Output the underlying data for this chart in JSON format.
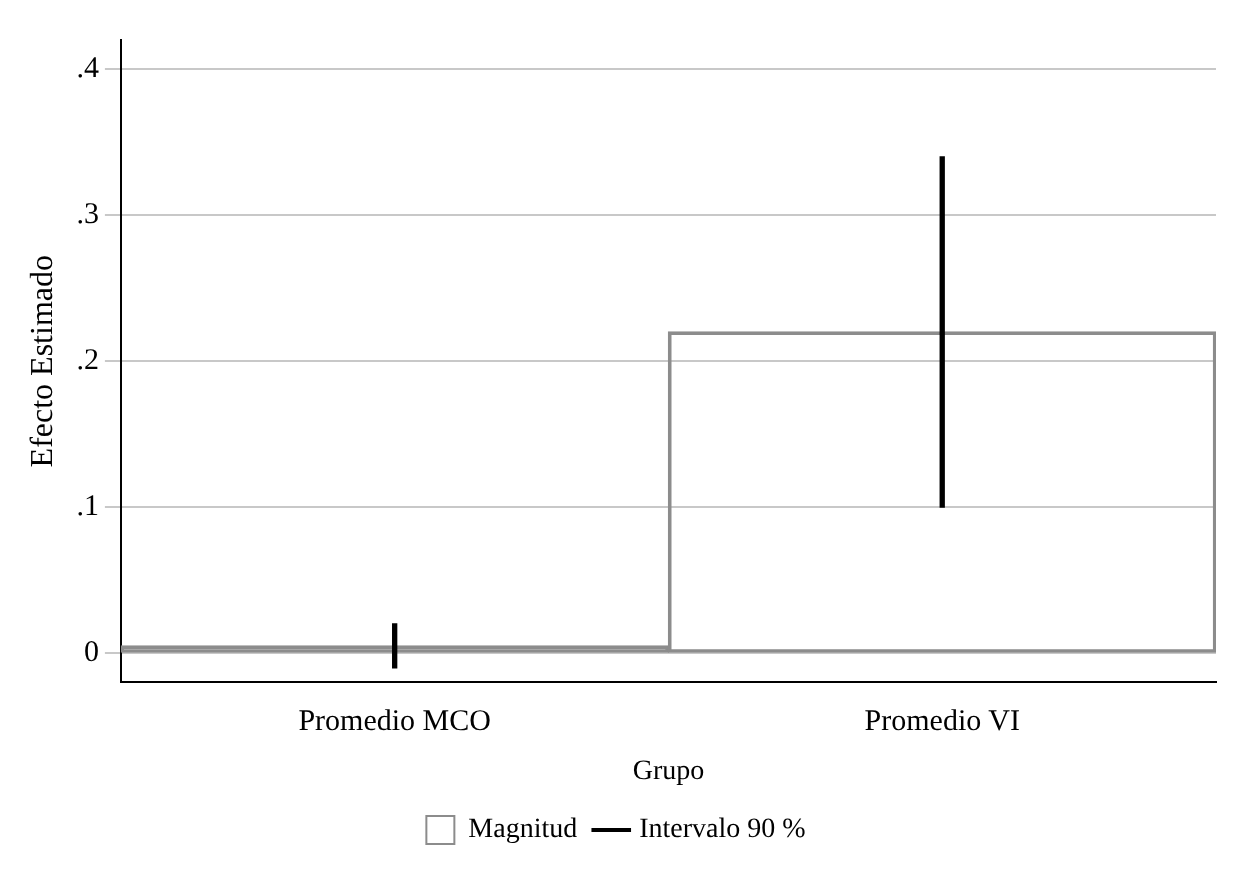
{
  "chart_data": {
    "type": "bar",
    "xlabel": "Grupo",
    "ylabel": "Efecto Estimado",
    "categories": [
      "Promedio MCO",
      "Promedio VI"
    ],
    "series": [
      {
        "name": "Magnitud",
        "type": "bar",
        "color": "#8c8c8c",
        "values": [
          0.005,
          0.22
        ]
      },
      {
        "name": "Intervalo 90 %",
        "type": "bar",
        "color": "#000000",
        "base": [
          -0.01,
          0.1
        ],
        "values": [
          0.03,
          0.24
        ]
      }
    ],
    "ylim": [
      -0.02,
      0.42
    ],
    "yticks": [
      {
        "value": 0,
        "label": "0"
      },
      {
        "value": 0.1,
        "label": ".1"
      },
      {
        "value": 0.2,
        "label": ".2"
      },
      {
        "value": 0.3,
        "label": ".3"
      },
      {
        "value": 0.4,
        "label": ".4"
      }
    ],
    "grid": "y",
    "legend": "bottom"
  }
}
